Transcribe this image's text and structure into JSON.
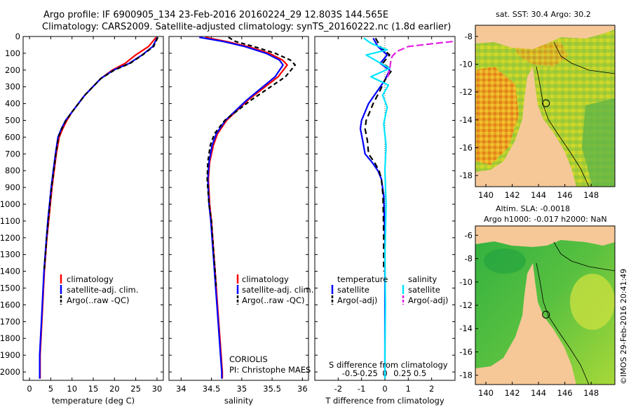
{
  "header": {
    "line1": "Argo profile: IF 6900905_134 23-Feb-2016 20160224_29 12.803S 144.565E",
    "line2": "Climatology: CARS2009. Satellite-adjusted climatology: synTS_20160222.nc (1.8d earlier)"
  },
  "colors": {
    "climatology": "#ff0000",
    "satellite": "#0000ff",
    "argo": "#000000",
    "sat_salinity": "#00e5ff",
    "argo_salinity_adj": "#e020e0",
    "land": "#f6c898"
  },
  "chart_data": [
    {
      "type": "line",
      "id": "temperature",
      "xlabel": "temperature (deg C)",
      "xticks": [
        0,
        5,
        10,
        15,
        20,
        25,
        30
      ],
      "xlim": [
        -1.5,
        31.5
      ],
      "yticks": [
        0,
        100,
        200,
        300,
        400,
        500,
        600,
        700,
        800,
        900,
        1000,
        1100,
        1200,
        1300,
        1400,
        1500,
        1600,
        1700,
        1800,
        1900,
        2000
      ],
      "ylim": [
        2050,
        0
      ],
      "legend": [
        "climatology",
        "satellite-adj. clim.",
        "Argo(..raw -QC)"
      ],
      "series": [
        {
          "name": "climatology",
          "color": "#ff0000",
          "dash": "",
          "x": [
            29.8,
            28,
            25,
            22.5,
            19.5,
            16.8,
            13,
            10,
            8.8,
            7.8,
            7,
            6.3,
            5.8,
            5.3,
            4.9,
            4.5,
            4.1,
            3.8,
            3.5,
            3.3,
            3.1,
            2.9,
            2.7,
            2.5,
            2.5
          ],
          "y": [
            5,
            60,
            110,
            160,
            200,
            250,
            350,
            450,
            500,
            550,
            600,
            700,
            800,
            900,
            1000,
            1100,
            1200,
            1300,
            1400,
            1500,
            1600,
            1700,
            1800,
            1900,
            2040
          ]
        },
        {
          "name": "satellite-adj. clim.",
          "color": "#0000ff",
          "dash": "",
          "x": [
            30.1,
            29,
            26.5,
            23.5,
            19.8,
            16.8,
            13,
            10,
            8.5,
            7.5,
            6.7,
            6.1,
            5.6,
            5.1,
            4.7,
            4.3,
            4,
            3.7,
            3.4,
            3.2,
            3,
            2.8,
            2.6,
            2.4,
            2.4
          ],
          "y": [
            5,
            60,
            110,
            160,
            200,
            250,
            350,
            450,
            500,
            550,
            600,
            700,
            800,
            900,
            1000,
            1100,
            1200,
            1300,
            1400,
            1500,
            1600,
            1700,
            1800,
            1900,
            2040
          ]
        },
        {
          "name": "Argo(..raw -QC)",
          "color": "#000000",
          "dash": "6,4",
          "x": [
            30.2,
            29.2,
            26.6,
            23.7,
            20,
            16.8,
            13,
            10,
            8.6,
            7.6,
            6.8,
            6.2,
            5.7,
            5.2,
            4.8,
            4.4,
            4.05,
            3.75,
            3.45
          ],
          "y": [
            5,
            60,
            110,
            160,
            200,
            250,
            350,
            450,
            500,
            550,
            600,
            700,
            800,
            900,
            1000,
            1100,
            1200,
            1300,
            1400
          ]
        }
      ]
    },
    {
      "type": "line",
      "id": "salinity",
      "xlabel": "salinity",
      "xticks": [
        34,
        34.5,
        35,
        35.5,
        36
      ],
      "xlim": [
        33.8,
        36.1
      ],
      "ylim": [
        2050,
        0
      ],
      "legend": [
        "climatology",
        "satellite-adj. clim.",
        "Argo(..raw -QC)"
      ],
      "annotation": [
        "CORIOLIS",
        "PI: Christophe MAES"
      ],
      "series": [
        {
          "name": "climatology",
          "color": "#ff0000",
          "dash": "",
          "x": [
            34.4,
            34.75,
            35.1,
            35.45,
            35.67,
            35.75,
            35.6,
            35.1,
            34.75,
            34.6,
            34.53,
            34.47,
            34.45,
            34.47,
            34.5,
            34.52,
            34.54,
            34.56,
            34.58,
            34.6,
            34.62,
            34.64,
            34.66,
            34.68,
            34.68
          ],
          "y": [
            5,
            30,
            60,
            100,
            140,
            170,
            240,
            380,
            500,
            580,
            650,
            750,
            850,
            1000,
            1100,
            1200,
            1300,
            1400,
            1500,
            1600,
            1700,
            1800,
            1900,
            2000,
            2040
          ]
        },
        {
          "name": "satellite-adj. clim.",
          "color": "#0000ff",
          "dash": "",
          "x": [
            34.3,
            34.7,
            35.05,
            35.4,
            35.62,
            35.68,
            35.55,
            35.08,
            34.73,
            34.58,
            34.51,
            34.46,
            34.44,
            34.46,
            34.49,
            34.51,
            34.53,
            34.55,
            34.57,
            34.59,
            34.61,
            34.63,
            34.65,
            34.67,
            34.67
          ],
          "y": [
            5,
            30,
            60,
            100,
            140,
            170,
            240,
            380,
            500,
            580,
            650,
            750,
            850,
            1000,
            1100,
            1200,
            1300,
            1400,
            1500,
            1600,
            1700,
            1800,
            1900,
            2000,
            2040
          ]
        },
        {
          "name": "Argo(..raw -QC)",
          "color": "#000000",
          "dash": "6,4",
          "x": [
            34.78,
            34.9,
            35.2,
            35.55,
            35.8,
            35.88,
            35.72,
            35.15,
            34.72,
            34.55,
            34.48,
            34.44,
            34.43,
            34.46,
            34.5,
            34.52,
            34.54,
            34.56,
            34.58
          ],
          "y": [
            5,
            30,
            60,
            100,
            140,
            170,
            240,
            380,
            500,
            580,
            650,
            750,
            850,
            1000,
            1100,
            1200,
            1300,
            1400,
            1500
          ]
        }
      ]
    },
    {
      "type": "line",
      "id": "difference",
      "xlabel": "T difference from climatology",
      "top_label": "S difference from climatology",
      "xticks": [
        -2,
        -1,
        0,
        1,
        2
      ],
      "top_ticks": [
        "-0.5",
        "-0.25",
        "0",
        "0.25",
        "0.5"
      ],
      "top_tick_x": [
        -1.5,
        -0.75,
        0,
        0.75,
        1.5
      ],
      "xlim": [
        -3,
        3
      ],
      "ylim": [
        2050,
        0
      ],
      "legend_left_title": "temperature",
      "legend_right_title": "salinity",
      "legend": [
        "satellite",
        "Argo(-adj)",
        "satellite",
        "Argo(-adj)"
      ],
      "series": [
        {
          "name": "satellite",
          "color": "#0000ff",
          "dash": "",
          "x": [
            -0.5,
            -0.3,
            0.1,
            -0.2,
            0.2,
            0.0,
            -0.3,
            -0.7,
            -1.0,
            -1.05,
            -0.95,
            -0.85,
            -0.55,
            -0.3,
            -0.15,
            -0.05,
            0,
            0,
            0,
            0
          ],
          "y": [
            10,
            60,
            110,
            160,
            200,
            260,
            320,
            400,
            500,
            550,
            620,
            700,
            750,
            800,
            850,
            950,
            1200,
            1500,
            1800,
            2040
          ]
        },
        {
          "name": "Argo(-adj)",
          "color": "#000000",
          "dash": "8,5",
          "x": [
            -0.4,
            -0.2,
            0.2,
            -0.1,
            0.3,
            0.0,
            -0.2,
            -0.5,
            -0.8,
            -0.85,
            -0.75,
            -0.7,
            -0.45,
            -0.25,
            -0.15,
            -0.08,
            -0.05,
            -0.05
          ],
          "y": [
            10,
            60,
            110,
            160,
            200,
            260,
            320,
            400,
            500,
            550,
            620,
            700,
            750,
            800,
            850,
            950,
            1200,
            1400
          ]
        },
        {
          "name": "satellite",
          "color": "#00e5ff",
          "dash": "",
          "x": [
            -0.9,
            -0.6,
            0.1,
            -0.8,
            -0.3,
            0.2,
            -0.6,
            0.15,
            -0.1,
            0.1,
            -0.05,
            0.05,
            0,
            0.05,
            0,
            0.02,
            0,
            0
          ],
          "y": [
            10,
            40,
            80,
            110,
            150,
            190,
            240,
            290,
            350,
            420,
            520,
            650,
            800,
            1000,
            1300,
            1600,
            1900,
            2040
          ]
        },
        {
          "name": "Argo(-adj)",
          "color": "#e020e0",
          "dash": "10,4",
          "x": [
            2.9,
            2.2,
            1.0,
            0.5,
            0.3,
            0.25,
            0.2,
            0.1
          ],
          "y": [
            30,
            40,
            60,
            90,
            120,
            150,
            200,
            250
          ]
        }
      ]
    },
    {
      "type": "heatmap",
      "id": "sst-map",
      "title": "sat. SST: 30.4 Argo: 30.2",
      "xticks": [
        140,
        142,
        144,
        146,
        148
      ],
      "yticks": [
        -8,
        -10,
        -12,
        -14,
        -16,
        -18
      ],
      "xlim": [
        139.2,
        149.8
      ],
      "ylim": [
        -18.8,
        -7.2
      ],
      "argo_position": [
        144.565,
        -12.803
      ]
    },
    {
      "type": "heatmap",
      "id": "sla-map",
      "title": [
        "Altim. SLA: -0.0018",
        "Argo h1000: -0.017 h2000: NaN"
      ],
      "xticks": [
        140,
        142,
        144,
        146,
        148
      ],
      "yticks": [
        -6,
        -8,
        -10,
        -12,
        -14,
        -16,
        -18
      ],
      "xlim": [
        139.2,
        149.8
      ],
      "ylim": [
        -18.8,
        -5.2
      ],
      "argo_position": [
        144.565,
        -12.803
      ],
      "credit": "©IMOS 29-Feb-2016 20:41:49"
    }
  ]
}
